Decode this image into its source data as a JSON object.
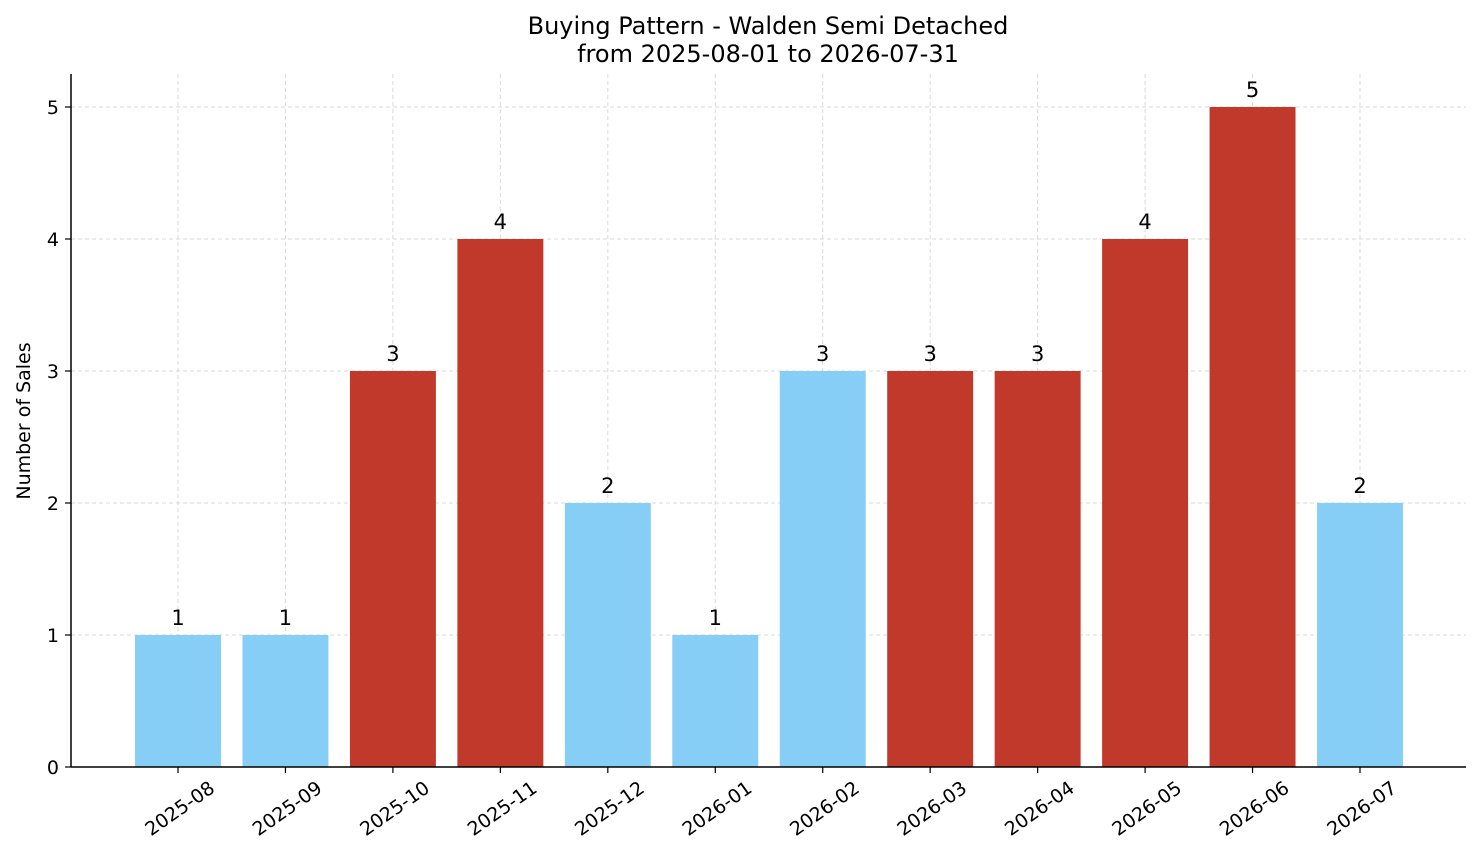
{
  "chart_data": {
    "type": "bar",
    "title": "Buying Pattern - Walden Semi Detached",
    "subtitle": "from 2025-08-01 to 2026-07-31",
    "xlabel": "",
    "ylabel": "Number of Sales",
    "categories": [
      "2025-08",
      "2025-09",
      "2025-10",
      "2025-11",
      "2025-12",
      "2026-01",
      "2026-02",
      "2026-03",
      "2026-04",
      "2026-05",
      "2026-06",
      "2026-07"
    ],
    "values": [
      1,
      1,
      3,
      4,
      2,
      1,
      3,
      3,
      3,
      4,
      5,
      2
    ],
    "bar_colors": [
      "#87CEF7",
      "#87CEF7",
      "#C0392B",
      "#C0392B",
      "#87CEF7",
      "#87CEF7",
      "#87CEF7",
      "#C0392B",
      "#C0392B",
      "#C0392B",
      "#C0392B",
      "#87CEF7"
    ],
    "yticks": [
      0,
      1,
      2,
      3,
      4,
      5
    ],
    "ylim": [
      0,
      5.25
    ],
    "grid": true,
    "data_labels": true,
    "legend": "none"
  }
}
